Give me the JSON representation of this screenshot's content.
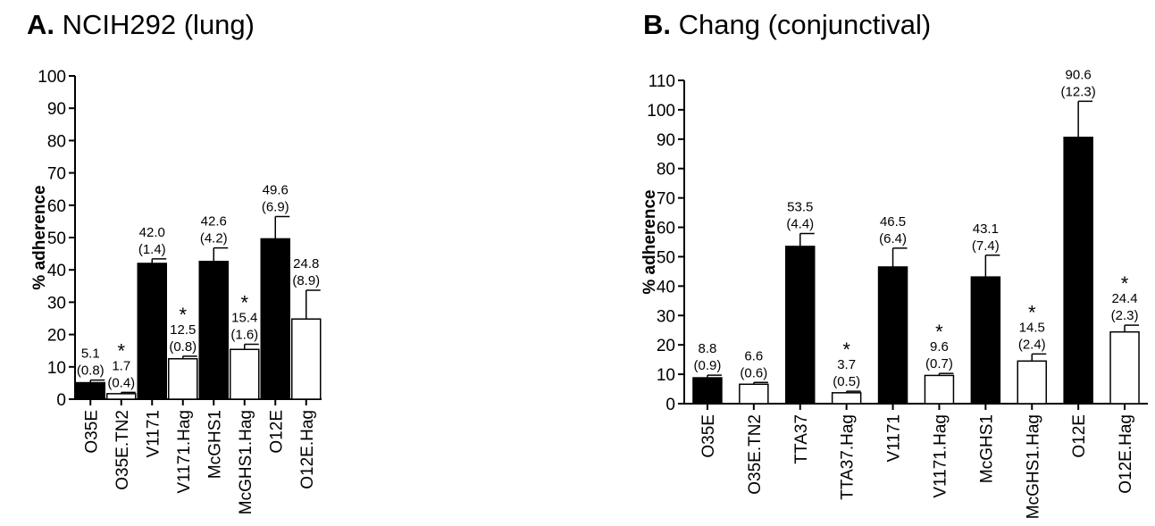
{
  "panels": [
    {
      "letter": "A.",
      "name": "NCIH292 (lung)"
    },
    {
      "letter": "B.",
      "name": "Chang (conjunctival)"
    }
  ],
  "chart_data": [
    {
      "type": "bar",
      "title": "A. NCIH292 (lung)",
      "ylabel": "% adherence",
      "ylim": [
        0,
        100
      ],
      "yticks": [
        0,
        10,
        20,
        30,
        40,
        50,
        60,
        70,
        80,
        90,
        100
      ],
      "grid": false,
      "categories": [
        "O35E",
        "O35E.TN2",
        "V1171",
        "V1171.Hag",
        "McGHS1",
        "McGHS1.Hag",
        "O12E",
        "O12E.Hag"
      ],
      "values": [
        5.1,
        1.7,
        42.0,
        12.5,
        42.6,
        15.4,
        49.6,
        24.8
      ],
      "errors": [
        0.8,
        0.4,
        1.4,
        0.8,
        4.2,
        1.6,
        6.9,
        8.9
      ],
      "value_labels": [
        "5.1",
        "1.7",
        "42.0",
        "12.5",
        "42.6",
        "15.4",
        "49.6",
        "24.8"
      ],
      "error_labels": [
        "(0.8)",
        "(0.4)",
        "(1.4)",
        "(0.8)",
        "(4.2)",
        "(1.6)",
        "(6.9)",
        "(8.9)"
      ],
      "fills": [
        "black",
        "white",
        "black",
        "white",
        "black",
        "white",
        "black",
        "white"
      ],
      "significant": [
        false,
        true,
        false,
        true,
        false,
        true,
        false,
        false
      ],
      "significance_marker": "*"
    },
    {
      "type": "bar",
      "title": "B. Chang (conjunctival)",
      "ylabel": "% adherence",
      "ylim": [
        0,
        110
      ],
      "yticks": [
        0,
        10,
        20,
        30,
        40,
        50,
        60,
        70,
        80,
        90,
        100,
        110
      ],
      "grid": false,
      "categories": [
        "O35E",
        "O35E.TN2",
        "TTA37",
        "TTA37.Hag",
        "V1171",
        "V1171.Hag",
        "McGHS1",
        "McGHS1.Hag",
        "O12E",
        "O12E.Hag"
      ],
      "values": [
        8.8,
        6.6,
        53.5,
        3.7,
        46.5,
        9.6,
        43.1,
        14.5,
        90.6,
        24.4
      ],
      "errors": [
        0.9,
        0.6,
        4.4,
        0.5,
        6.4,
        0.7,
        7.4,
        2.4,
        12.3,
        2.3
      ],
      "value_labels": [
        "8.8",
        "6.6",
        "53.5",
        "3.7",
        "46.5",
        "9.6",
        "43.1",
        "14.5",
        "90.6",
        "24.4"
      ],
      "error_labels": [
        "(0.9)",
        "(0.6)",
        "(4.4)",
        "(0.5)",
        "(6.4)",
        "(0.7)",
        "(7.4)",
        "(2.4)",
        "(12.3)",
        "(2.3)"
      ],
      "fills": [
        "black",
        "white",
        "black",
        "white",
        "black",
        "white",
        "black",
        "white",
        "black",
        "white"
      ],
      "significant": [
        false,
        false,
        false,
        true,
        false,
        true,
        false,
        true,
        false,
        true
      ],
      "significance_marker": "*"
    }
  ]
}
